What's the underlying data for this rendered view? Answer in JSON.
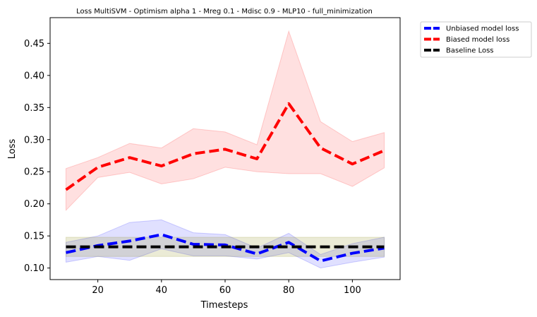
{
  "chart_data": {
    "type": "line",
    "title": "Loss MultiSVM - Optimism alpha 1 - Mreg 0.1 - Mdisc 0.9 - MLP10 - full_minimization",
    "xlabel": "Timesteps",
    "ylabel": "Loss",
    "xlim": [
      5,
      115
    ],
    "ylim": [
      0.082,
      0.49
    ],
    "xticks": [
      20,
      40,
      60,
      80,
      100
    ],
    "yticks": [
      0.1,
      0.15,
      0.2,
      0.25,
      0.3,
      0.35,
      0.4,
      0.45
    ],
    "xtick_labels": [
      "20",
      "40",
      "60",
      "80",
      "100"
    ],
    "ytick_labels": [
      "0.10",
      "0.15",
      "0.20",
      "0.25",
      "0.30",
      "0.35",
      "0.40",
      "0.45"
    ],
    "grid": false,
    "legend_placement": "outside upper-right",
    "x": [
      10,
      20,
      30,
      40,
      50,
      60,
      70,
      80,
      90,
      100,
      110
    ],
    "series": [
      {
        "name": "Unbiased model loss",
        "color": "#0000ff",
        "style": "dashed",
        "values": [
          0.124,
          0.135,
          0.142,
          0.152,
          0.137,
          0.136,
          0.122,
          0.14,
          0.111,
          0.123,
          0.131
        ],
        "band_upper": [
          0.14,
          0.15,
          0.171,
          0.175,
          0.155,
          0.152,
          0.131,
          0.154,
          0.121,
          0.138,
          0.148
        ],
        "band_lower": [
          0.109,
          0.118,
          0.112,
          0.13,
          0.119,
          0.119,
          0.114,
          0.124,
          0.1,
          0.109,
          0.117
        ]
      },
      {
        "name": "Biased model loss",
        "color": "#ff0000",
        "style": "dashed",
        "values": [
          0.222,
          0.257,
          0.272,
          0.259,
          0.278,
          0.285,
          0.27,
          0.356,
          0.287,
          0.262,
          0.283
        ],
        "band_upper": [
          0.255,
          0.272,
          0.294,
          0.287,
          0.317,
          0.312,
          0.292,
          0.469,
          0.328,
          0.297,
          0.311
        ],
        "band_lower": [
          0.19,
          0.241,
          0.249,
          0.231,
          0.239,
          0.257,
          0.25,
          0.247,
          0.247,
          0.227,
          0.256
        ]
      },
      {
        "name": "Baseline Loss",
        "color": "#000000",
        "style": "dashed",
        "values": [
          0.133,
          0.133,
          0.133,
          0.133,
          0.133,
          0.133,
          0.133,
          0.133,
          0.133,
          0.133,
          0.133
        ],
        "band_upper": [
          0.148,
          0.148,
          0.148,
          0.148,
          0.148,
          0.148,
          0.148,
          0.148,
          0.148,
          0.148,
          0.148
        ],
        "band_lower": [
          0.118,
          0.118,
          0.118,
          0.118,
          0.118,
          0.118,
          0.118,
          0.118,
          0.118,
          0.118,
          0.118
        ]
      }
    ]
  }
}
